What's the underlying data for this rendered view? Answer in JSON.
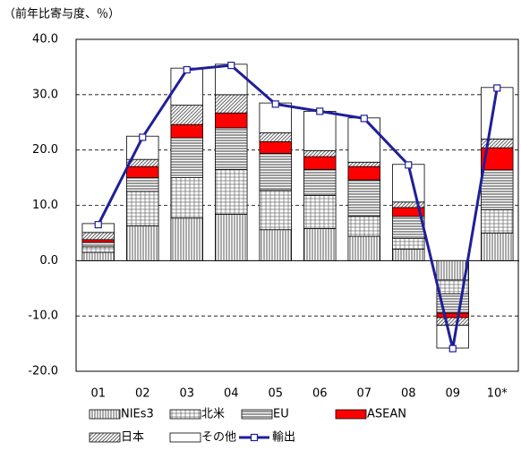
{
  "chart_data": {
    "type": "bar",
    "stacked": true,
    "y_label": "（前年比寄与度、％）",
    "categories": [
      "01",
      "02",
      "03",
      "04",
      "05",
      "06",
      "07",
      "08",
      "09",
      "10*"
    ],
    "ylim": [
      -20,
      40
    ],
    "yticks": [
      {
        "value": -20,
        "label": "-20.0"
      },
      {
        "value": -10,
        "label": "-10.0"
      },
      {
        "value": 0,
        "label": "0.0"
      },
      {
        "value": 10,
        "label": "10.0"
      },
      {
        "value": 20,
        "label": "20.0"
      },
      {
        "value": 30,
        "label": "30.0"
      },
      {
        "value": 40,
        "label": "40.0"
      }
    ],
    "grid": true,
    "legend": "bottom",
    "series": [
      {
        "name": "NIEs3",
        "color": "#000000",
        "pattern": "vertical",
        "values": [
          1.5,
          6.3,
          7.7,
          8.4,
          5.6,
          5.8,
          4.4,
          2.1,
          -3.5,
          5.0
        ]
      },
      {
        "name": "北米",
        "color": "#000000",
        "pattern": "grid",
        "values": [
          1.0,
          6.2,
          7.3,
          8.1,
          7.1,
          6.0,
          3.6,
          1.9,
          -2.5,
          4.2
        ]
      },
      {
        "name": "EU",
        "color": "#000000",
        "pattern": "horizontal",
        "values": [
          0.8,
          2.5,
          7.2,
          7.5,
          6.7,
          4.7,
          6.6,
          4.0,
          -3.5,
          7.2
        ]
      },
      {
        "name": "ASEAN",
        "color": "#ff0000",
        "pattern": "solid",
        "values": [
          0.5,
          2.0,
          2.4,
          2.7,
          2.1,
          2.3,
          2.4,
          1.6,
          -0.8,
          4.0
        ]
      },
      {
        "name": "日本",
        "color": "#000000",
        "pattern": "diagonal",
        "values": [
          1.3,
          1.3,
          3.5,
          3.3,
          1.6,
          1.1,
          0.8,
          1.0,
          -1.4,
          1.6
        ]
      },
      {
        "name": "その他",
        "color": "#000000",
        "pattern": "none",
        "values": [
          1.6,
          4.2,
          6.7,
          5.5,
          5.4,
          7.1,
          8.0,
          6.8,
          -4.1,
          9.3
        ]
      },
      {
        "name": "輸出",
        "type": "line",
        "color": "#1f1f99",
        "values": [
          6.5,
          22.3,
          34.5,
          35.3,
          28.3,
          27.0,
          25.7,
          17.3,
          -15.9,
          31.2
        ]
      }
    ]
  }
}
